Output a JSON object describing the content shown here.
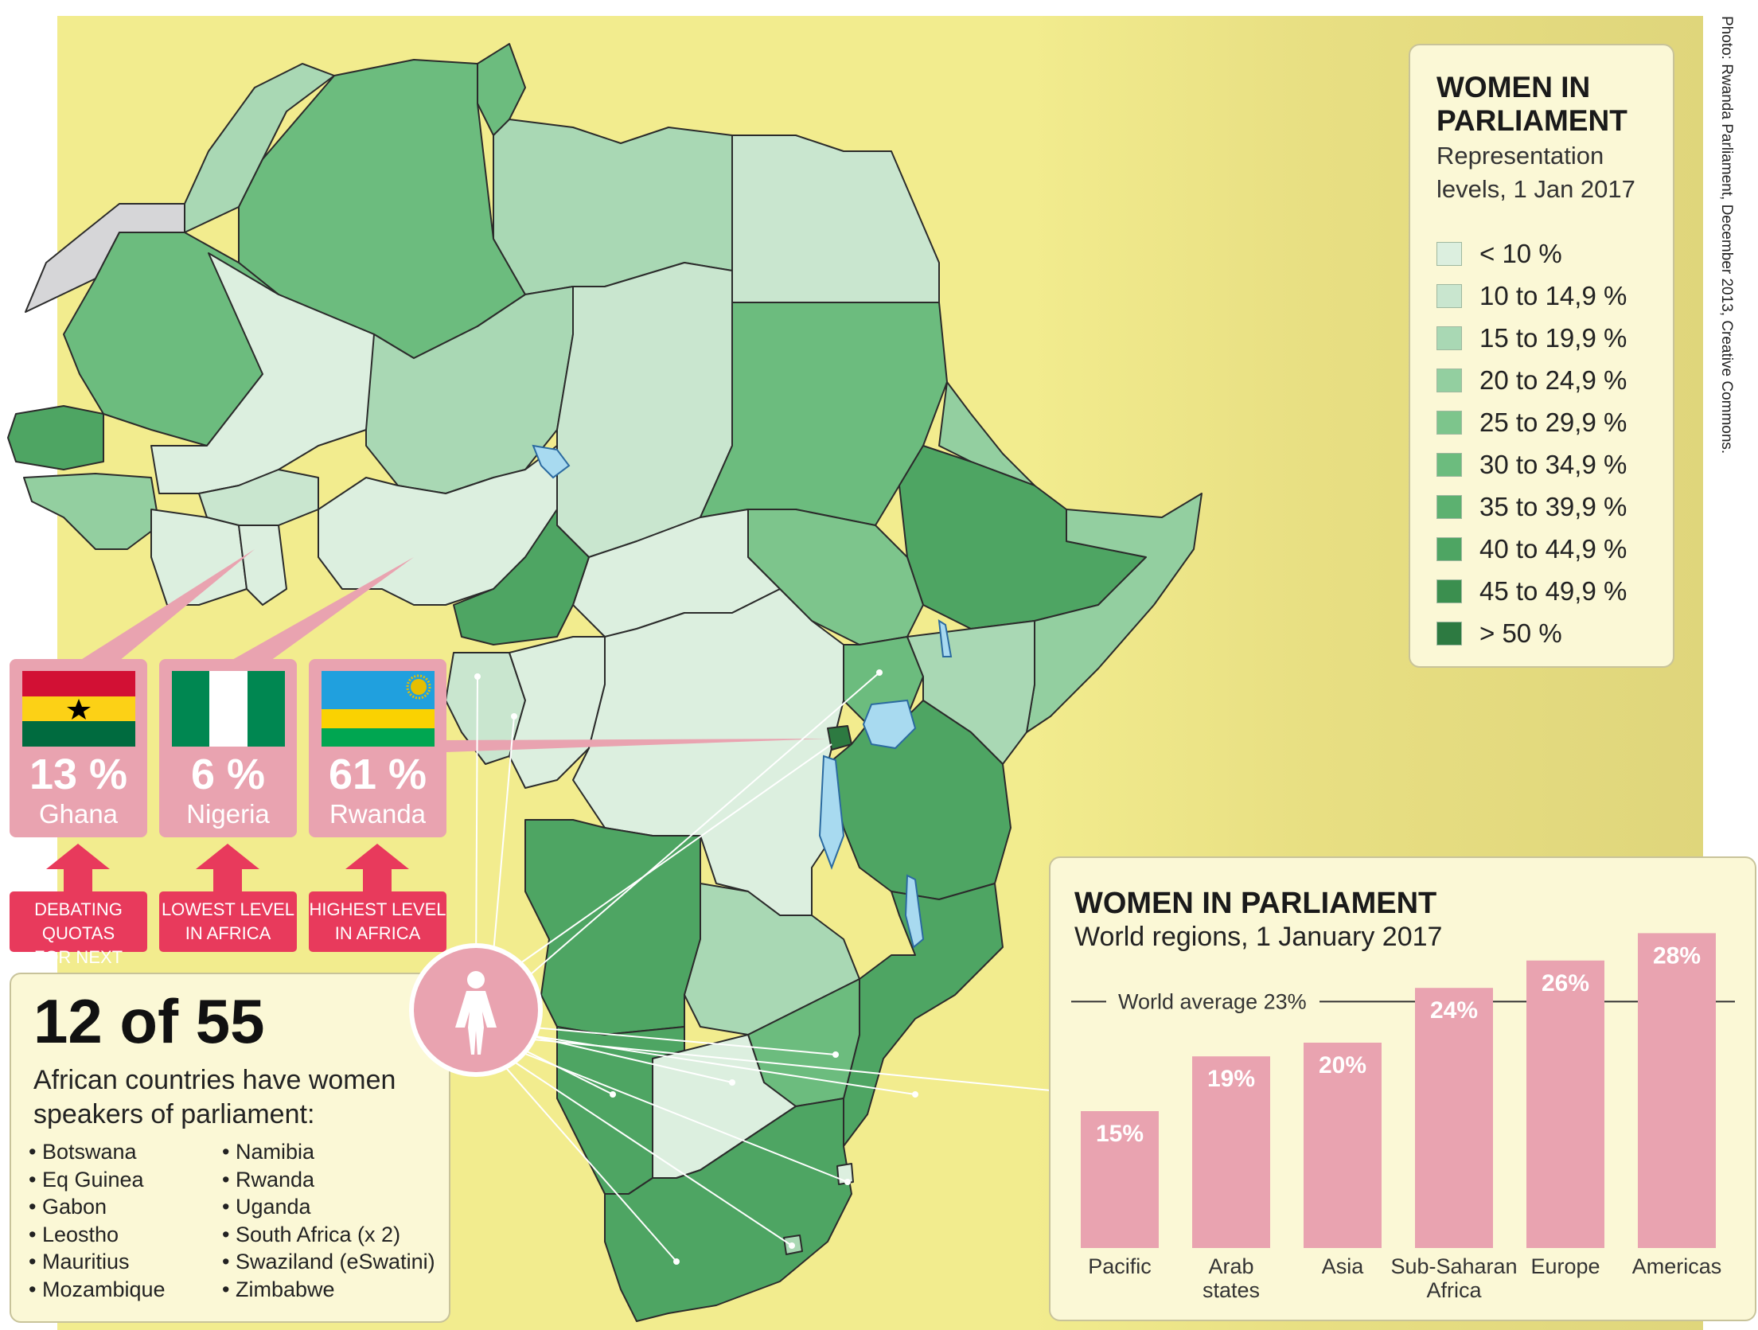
{
  "credit": "Photo: Rwanda Parliament, December 2013, Creative Commons.",
  "legend": {
    "title": "WOMEN IN PARLIAMENT",
    "subtitle": "Representation levels, 1 Jan 2017",
    "items": [
      {
        "label": "< 10 %",
        "color": "#dcefdf"
      },
      {
        "label": "10 to 14,9 %",
        "color": "#c9e6cf"
      },
      {
        "label": "15 to 19,9 %",
        "color": "#a9d8b4"
      },
      {
        "label": "20 to 24,9 %",
        "color": "#93cfa0"
      },
      {
        "label": "25 to 29,9 %",
        "color": "#7dc58c"
      },
      {
        "label": "30 to 34,9 %",
        "color": "#6cbc7e"
      },
      {
        "label": "35 to 39,9 %",
        "color": "#5cb170"
      },
      {
        "label": "40 to 44,9 %",
        "color": "#4ea563"
      },
      {
        "label": "45 to 49,9 %",
        "color": "#3b8f4f"
      },
      {
        "label": "> 50 %",
        "color": "#2d7a41"
      }
    ]
  },
  "highlights": [
    {
      "country": "Ghana",
      "pct": "13 %",
      "tag_line1": "DEBATING QUOTAS",
      "tag_line2": "FOR NEXT ELECTION"
    },
    {
      "country": "Nigeria",
      "pct": "6 %",
      "tag_line1": "LOWEST LEVEL",
      "tag_line2": "IN AFRICA"
    },
    {
      "country": "Rwanda",
      "pct": "61 %",
      "tag_line1": "HIGHEST LEVEL",
      "tag_line2": "IN AFRICA"
    }
  ],
  "speakers": {
    "headline": "12 of 55",
    "description": "African countries have women speakers of parliament:",
    "list_left": [
      "Botswana",
      "Eq Guinea",
      "Gabon",
      "Leostho",
      "Mauritius",
      "Mozambique"
    ],
    "list_right": [
      "Namibia",
      "Rwanda",
      "Uganda",
      "South Africa (x 2)",
      "Swaziland (eSwatini)",
      "Zimbabwe"
    ]
  },
  "chart_data": {
    "type": "bar",
    "title": "WOMEN IN PARLIAMENT",
    "subtitle": "World regions, 1 January 2017",
    "categories": [
      "Pacific",
      "Arab states",
      "Asia",
      "Sub-Saharan Africa",
      "Europe",
      "Americas"
    ],
    "values": [
      15,
      19,
      20,
      24,
      26,
      28
    ],
    "value_labels": [
      "15%",
      "19%",
      "20%",
      "24%",
      "26%",
      "28%"
    ],
    "reference_line": {
      "label": "World average 23%",
      "value": 23
    },
    "bar_color": "#e9a3b0"
  }
}
